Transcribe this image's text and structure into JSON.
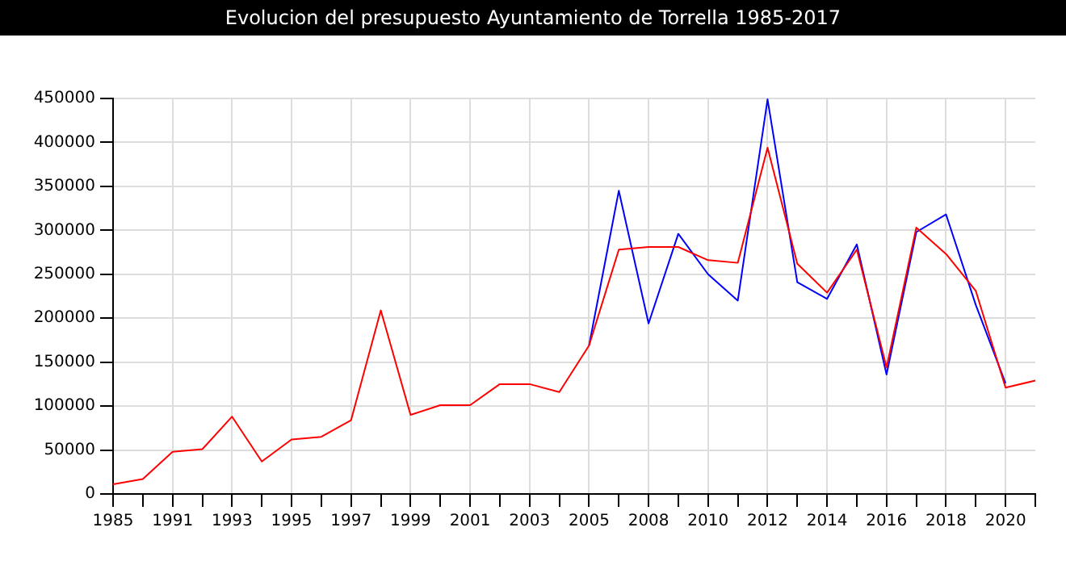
{
  "chart_data": {
    "type": "line",
    "title": "Evolucion del presupuesto Ayuntamiento de Torrella 1985-2017",
    "categories": [
      "1985",
      null,
      "1991",
      null,
      "1993",
      null,
      "1995",
      null,
      "1997",
      null,
      "1999",
      null,
      "2001",
      null,
      "2003",
      null,
      "2005",
      null,
      "2008",
      null,
      "2010",
      null,
      "2012",
      null,
      "2014",
      null,
      "2016",
      null,
      "2018",
      null,
      "2020",
      null
    ],
    "series": [
      {
        "color": "#ff0000",
        "values": [
          11000,
          17000,
          48000,
          51000,
          88000,
          37000,
          62000,
          65000,
          84000,
          209000,
          90000,
          101000,
          101000,
          125000,
          125000,
          116000,
          169000,
          278000,
          281000,
          281000,
          266000,
          263000,
          394000,
          262000,
          229000,
          278000,
          144000,
          303000,
          273000,
          231000,
          121000,
          129000
        ]
      },
      {
        "color": "#0000ff",
        "values": [
          null,
          null,
          null,
          null,
          null,
          null,
          null,
          null,
          null,
          null,
          null,
          null,
          null,
          null,
          null,
          null,
          169000,
          345000,
          194000,
          296000,
          250000,
          220000,
          449000,
          241000,
          222000,
          284000,
          136000,
          298000,
          318000,
          215000,
          126000,
          null
        ]
      }
    ],
    "ylim": [
      0,
      450000
    ],
    "yticks": [
      0,
      50000,
      100000,
      150000,
      200000,
      250000,
      300000,
      350000,
      400000,
      450000
    ],
    "grid": true,
    "legend": false,
    "marker": "none",
    "line_style": "solid"
  }
}
